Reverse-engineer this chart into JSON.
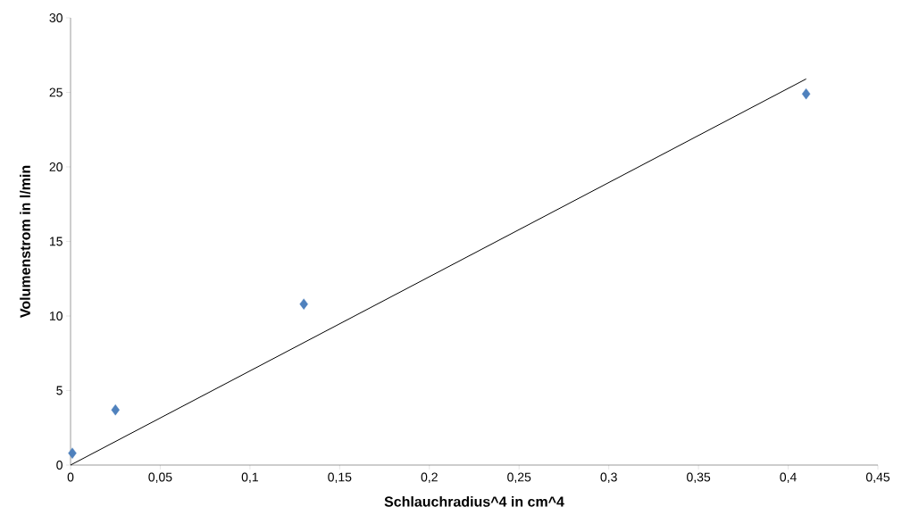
{
  "chart_data": {
    "type": "scatter",
    "xlabel": "Schlauchradius^4  in cm^4",
    "ylabel": "Volumenstrom in  l/min",
    "xlim": [
      0,
      0.45
    ],
    "ylim": [
      0,
      30
    ],
    "xticks": [
      0,
      {
        "value": 0.05,
        "label": "0,05"
      },
      {
        "value": 0.1,
        "label": "0,1"
      },
      {
        "value": 0.15,
        "label": "0,15"
      },
      {
        "value": 0.2,
        "label": "0,2"
      },
      {
        "value": 0.25,
        "label": "0,25"
      },
      {
        "value": 0.3,
        "label": "0,3"
      },
      {
        "value": 0.35,
        "label": "0,35"
      },
      {
        "value": 0.4,
        "label": "0,4"
      },
      {
        "value": 0.45,
        "label": "0,45"
      }
    ],
    "yticks": [
      0,
      5,
      10,
      15,
      20,
      25,
      30
    ],
    "marker": "diamond",
    "series": [
      {
        "color": "#4f81bd",
        "x": [
          0.001,
          0.025,
          0.13,
          0.41
        ],
        "values": [
          0.8,
          3.7,
          10.8,
          24.9
        ]
      },
      {
        "type": "line",
        "color": "#000000",
        "marker": "none",
        "x": [
          0,
          0.41
        ],
        "values": [
          0,
          25.9
        ]
      }
    ]
  }
}
